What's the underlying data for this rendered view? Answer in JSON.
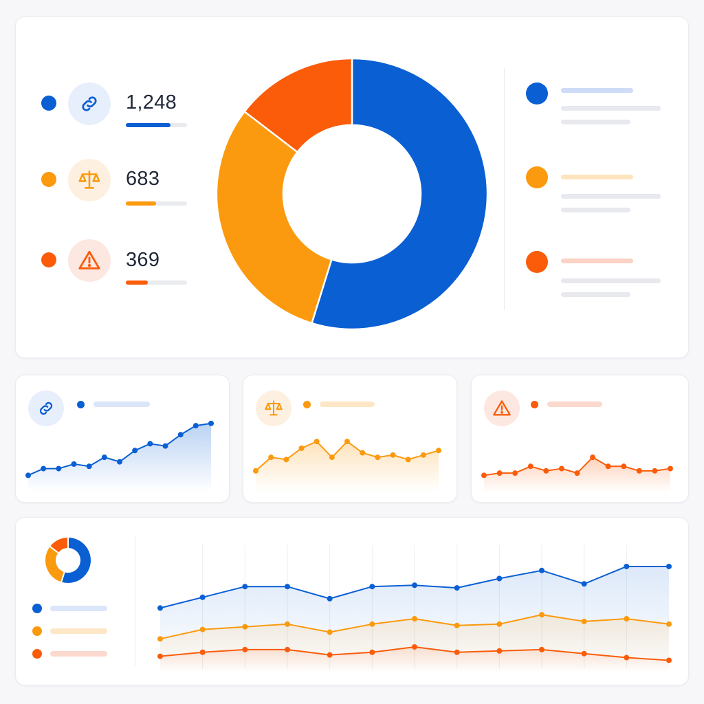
{
  "colors": {
    "blue": "#0a5fd3",
    "orange": "#fb9a0e",
    "red": "#fa5c0a",
    "blue_soft": "#cfdcf7",
    "orange_soft": "#fde4bd",
    "red_soft": "#fbd3c5",
    "gray_line": "#e8e9ee",
    "blue_tint": "#e8effc",
    "orange_tint": "#fdf0e0",
    "red_tint": "#fde7e1"
  },
  "stats": [
    {
      "value": "1,248",
      "icon": "link-icon",
      "color": "blue",
      "progress": 0.73
    },
    {
      "value": "683",
      "icon": "scale-icon",
      "color": "orange",
      "progress": 0.49
    },
    {
      "value": "369",
      "icon": "warning-icon",
      "color": "red",
      "progress": 0.36
    }
  ],
  "donut": {
    "segments": [
      {
        "name": "links",
        "color": "blue",
        "share": 0.548
      },
      {
        "name": "balance",
        "color": "orange",
        "share": 0.306
      },
      {
        "name": "warnings",
        "color": "red",
        "share": 0.146
      }
    ]
  },
  "mini_charts": [
    {
      "icon": "link-icon",
      "color": "blue",
      "values": [
        2,
        5,
        5,
        7,
        6,
        10,
        8,
        13,
        16,
        15,
        20,
        24,
        25
      ]
    },
    {
      "icon": "scale-icon",
      "color": "orange",
      "values": [
        4,
        10,
        9,
        14,
        17,
        10,
        17,
        12,
        10,
        11,
        9,
        11,
        13
      ]
    },
    {
      "icon": "warning-icon",
      "color": "red",
      "values": [
        2,
        3,
        3,
        6,
        4,
        5,
        3,
        10,
        6,
        6,
        4,
        4,
        5
      ]
    }
  ],
  "chart_data": {
    "type": "area",
    "series": [
      {
        "color": "blue",
        "values": [
          48,
          56,
          64,
          64,
          55,
          64,
          65,
          63,
          70,
          76,
          66,
          79,
          79
        ]
      },
      {
        "color": "orange",
        "values": [
          25,
          32,
          34,
          36,
          30,
          36,
          40,
          35,
          36,
          43,
          38,
          40,
          36
        ]
      },
      {
        "color": "red",
        "values": [
          12,
          15,
          17,
          17,
          13,
          15,
          19,
          15,
          16,
          17,
          14,
          11,
          9
        ]
      }
    ],
    "ylim": [
      0,
      100
    ],
    "legend": "left",
    "grid": "vertical"
  }
}
